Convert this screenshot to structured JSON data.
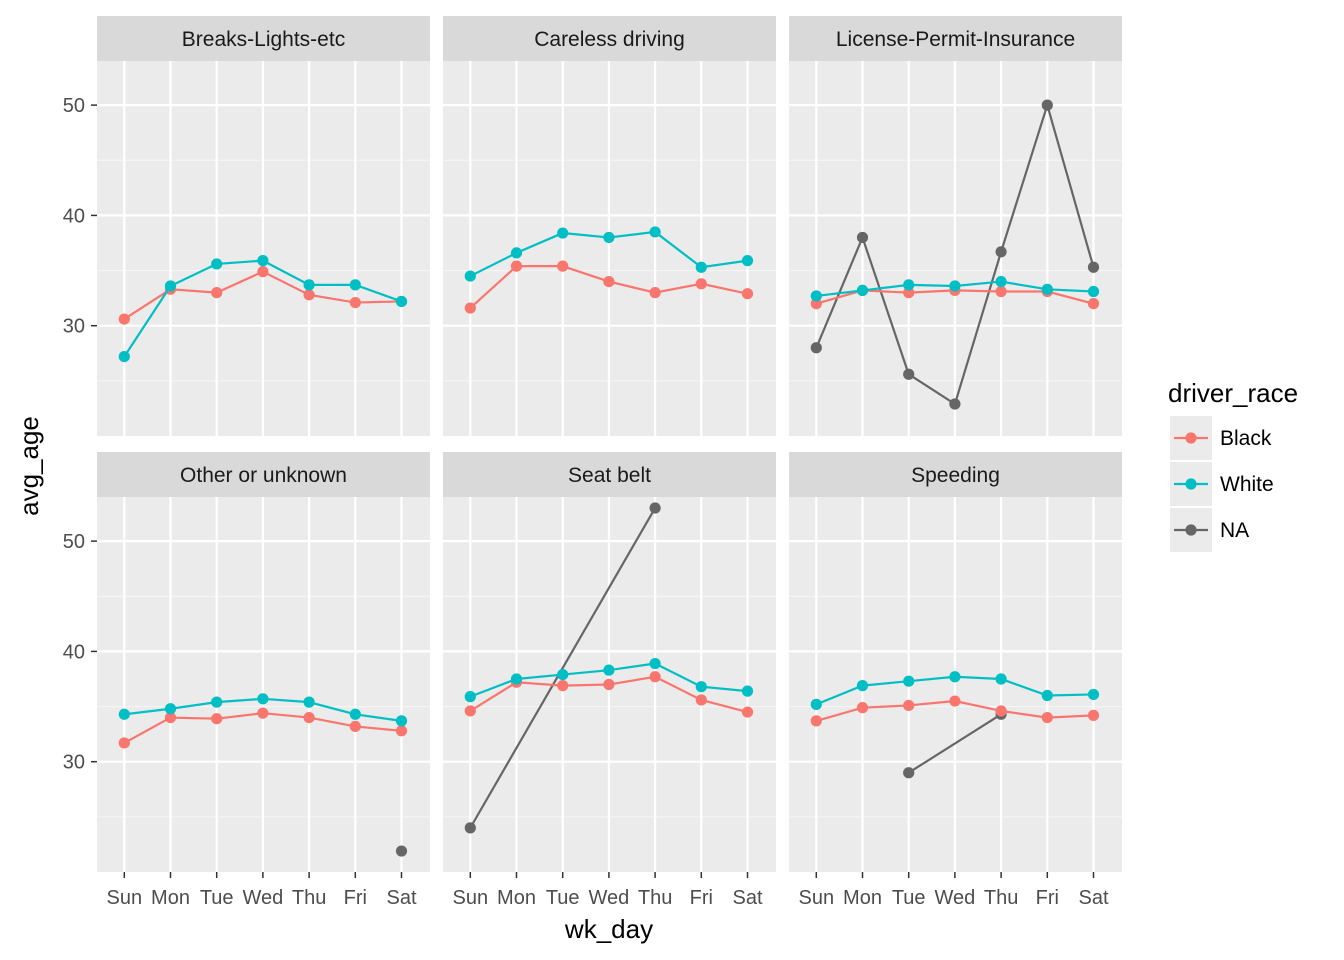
{
  "chart_data": {
    "type": "line",
    "xlabel": "wk_day",
    "ylabel": "avg_age",
    "x": [
      "Sun",
      "Mon",
      "Tue",
      "Wed",
      "Thu",
      "Fri",
      "Sat"
    ],
    "ylim": [
      20,
      54
    ],
    "yticks": [
      30,
      40,
      50
    ],
    "legend": {
      "title": "driver_race",
      "position": "right",
      "entries": [
        "Black",
        "White",
        "NA"
      ]
    },
    "colors": {
      "Black": "#F8766D",
      "White": "#00BFC4",
      "NA": "#666666"
    },
    "grid": true,
    "panels": [
      {
        "title": "Breaks-Lights-etc",
        "series": [
          {
            "name": "Black",
            "values": [
              30.6,
              33.3,
              33.0,
              34.9,
              32.8,
              32.1,
              32.2
            ]
          },
          {
            "name": "White",
            "values": [
              27.2,
              33.6,
              35.6,
              35.9,
              33.7,
              33.7,
              32.2
            ]
          },
          {
            "name": "NA",
            "values": [
              null,
              null,
              null,
              null,
              null,
              null,
              null
            ]
          }
        ]
      },
      {
        "title": "Careless driving",
        "series": [
          {
            "name": "Black",
            "values": [
              31.6,
              35.4,
              35.4,
              34.0,
              33.0,
              33.8,
              32.9
            ]
          },
          {
            "name": "White",
            "values": [
              34.5,
              36.6,
              38.4,
              38.0,
              38.5,
              35.3,
              35.9
            ]
          },
          {
            "name": "NA",
            "values": [
              null,
              null,
              null,
              null,
              null,
              null,
              null
            ]
          }
        ]
      },
      {
        "title": "License-Permit-Insurance",
        "series": [
          {
            "name": "Black",
            "values": [
              32.0,
              33.2,
              33.0,
              33.2,
              33.1,
              33.1,
              32.0
            ]
          },
          {
            "name": "White",
            "values": [
              32.7,
              33.2,
              33.7,
              33.6,
              34.0,
              33.3,
              33.1
            ]
          },
          {
            "name": "NA",
            "values": [
              28.0,
              38.0,
              25.6,
              22.9,
              36.7,
              50.0,
              35.3
            ]
          }
        ]
      },
      {
        "title": "Other or unknown",
        "series": [
          {
            "name": "Black",
            "values": [
              31.7,
              34.0,
              33.9,
              34.4,
              34.0,
              33.2,
              32.8
            ]
          },
          {
            "name": "White",
            "values": [
              34.3,
              34.8,
              35.4,
              35.7,
              35.4,
              34.3,
              33.7
            ]
          },
          {
            "name": "NA",
            "values": [
              null,
              null,
              null,
              null,
              null,
              null,
              21.9
            ]
          }
        ]
      },
      {
        "title": "Seat belt",
        "series": [
          {
            "name": "Black",
            "values": [
              34.6,
              37.2,
              36.9,
              37.0,
              37.7,
              35.6,
              34.5
            ]
          },
          {
            "name": "White",
            "values": [
              35.9,
              37.5,
              37.9,
              38.3,
              38.9,
              36.8,
              36.4
            ]
          },
          {
            "name": "NA",
            "values": [
              24.0,
              null,
              null,
              null,
              53.0,
              null,
              null
            ]
          }
        ]
      },
      {
        "title": "Speeding",
        "series": [
          {
            "name": "Black",
            "values": [
              33.7,
              34.9,
              35.1,
              35.5,
              34.6,
              34.0,
              34.2
            ]
          },
          {
            "name": "White",
            "values": [
              35.2,
              36.9,
              37.3,
              37.7,
              37.5,
              36.0,
              36.1
            ]
          },
          {
            "name": "NA",
            "values": [
              null,
              null,
              29.0,
              null,
              34.3,
              null,
              null
            ]
          }
        ]
      }
    ]
  }
}
